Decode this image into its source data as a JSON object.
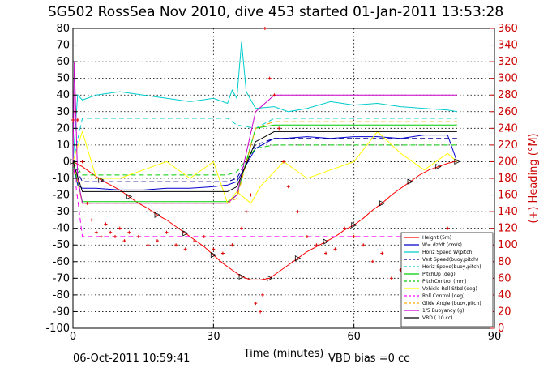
{
  "chart_data": {
    "type": "line",
    "title": "SG502 RossSea Nov 2010, dive 453 started 01-Jan-2011 13:53:28",
    "xlabel": "Time (minutes)",
    "ylabel_left": "",
    "ylabel_right": "(+) Heading (°M)",
    "xlim": [
      0,
      90
    ],
    "ylim_left": [
      -100,
      80
    ],
    "ylim_right": [
      0,
      360
    ],
    "x_ticks": [
      "0",
      "30",
      "60",
      "90"
    ],
    "y_ticks_left": [
      "80",
      "70",
      "60",
      "50",
      "40",
      "30",
      "20",
      "10",
      "0",
      "-10",
      "-20",
      "-30",
      "-40",
      "-50",
      "-60",
      "-70",
      "-80",
      "-90",
      "-100"
    ],
    "y_ticks_right": [
      "360",
      "340",
      "320",
      "300",
      "280",
      "260",
      "240",
      "220",
      "200",
      "180",
      "160",
      "140",
      "120",
      "100",
      "80",
      "60",
      "40",
      "20",
      "0"
    ],
    "grid": true,
    "legend_position": "lower-right",
    "footer_left": "06-Oct-2011 10:59:41",
    "footer_right": "VBD bias =0 cc",
    "series": [
      {
        "name": "Height (5m)",
        "color": "#ff0000",
        "style": "solid",
        "x": [
          0,
          2,
          4,
          6,
          8,
          10,
          12,
          14,
          16,
          18,
          20,
          22,
          24,
          26,
          28,
          30,
          32,
          34,
          36,
          38,
          40,
          42,
          44,
          46,
          48,
          50,
          52,
          54,
          56,
          58,
          60,
          62,
          64,
          66,
          68,
          70,
          72,
          74,
          76,
          78,
          80,
          81.5,
          82
        ],
        "values": [
          0,
          -3,
          -7,
          -11,
          -14,
          -17,
          -21,
          -25,
          -28,
          -32,
          -35,
          -39,
          -43,
          -47,
          -51,
          -56,
          -61,
          -65,
          -69,
          -71,
          -71,
          -70,
          -66,
          -62,
          -58,
          -54,
          -51,
          -48,
          -45,
          -41,
          -38,
          -34,
          -29,
          -25,
          -20,
          -16,
          -12,
          -8,
          -5,
          -3,
          -1,
          0,
          0
        ]
      },
      {
        "name": "W= dz/dt (cm/s)",
        "color": "#0000cc",
        "style": "solid",
        "x": [
          0,
          1,
          2,
          5,
          10,
          15,
          20,
          25,
          30,
          33,
          35,
          39,
          43,
          45,
          50,
          55,
          60,
          65,
          70,
          75,
          80,
          82
        ],
        "values": [
          0,
          -14,
          -16,
          -16,
          -17,
          -17,
          -16,
          -16,
          -15,
          -14,
          -12,
          8,
          14,
          14,
          15,
          14,
          15,
          15,
          14,
          16,
          16,
          0
        ]
      },
      {
        "name": "Horiz Speed W(pitch)",
        "color": "#00cccc",
        "style": "solid",
        "x": [
          0,
          1,
          2,
          5,
          10,
          15,
          20,
          25,
          30,
          33,
          34,
          35,
          36,
          37,
          39,
          43,
          46,
          50,
          55,
          60,
          65,
          70,
          75,
          80,
          82
        ],
        "values": [
          0,
          40,
          37,
          40,
          42,
          40,
          38,
          36,
          38,
          35,
          43,
          38,
          72,
          42,
          32,
          33,
          30,
          32,
          36,
          34,
          35,
          33,
          32,
          31,
          30
        ]
      },
      {
        "name": "Vert Speed(buoy,pitch)",
        "color": "#000099",
        "style": "dashed",
        "x": [
          0,
          2,
          33,
          35,
          39,
          43,
          82
        ],
        "values": [
          0,
          -12,
          -12,
          -10,
          10,
          14,
          14
        ]
      },
      {
        "name": "Horiz Speed(buoy,pitch)",
        "color": "#00cccc",
        "style": "dashed",
        "x": [
          0,
          2,
          33,
          35,
          39,
          43,
          82
        ],
        "values": [
          0,
          26,
          26,
          22,
          20,
          26,
          26
        ]
      },
      {
        "name": "PitchUp (deg)",
        "color": "#00cc00",
        "style": "solid",
        "x": [
          0,
          2,
          33,
          35,
          39,
          43,
          82
        ],
        "values": [
          0,
          -24,
          -24,
          -20,
          20,
          22,
          22
        ]
      },
      {
        "name": "PitchControl (mm)",
        "color": "#00cc00",
        "style": "dashed",
        "x": [
          0,
          2,
          33,
          35,
          39,
          43,
          82
        ],
        "values": [
          0,
          -8,
          -8,
          -6,
          8,
          10,
          10
        ]
      },
      {
        "name": "Vehicle Roll Stbd (deg)",
        "color": "#ffff00",
        "style": "solid",
        "x": [
          0,
          2,
          5,
          8,
          10,
          15,
          20,
          25,
          30,
          33,
          35,
          38,
          40,
          45,
          50,
          55,
          60,
          65,
          70,
          75,
          80,
          82
        ],
        "values": [
          0,
          18,
          -10,
          -10,
          -10,
          -5,
          0,
          -10,
          0,
          -25,
          -18,
          -25,
          -15,
          0,
          -10,
          -5,
          0,
          18,
          5,
          -5,
          5,
          0
        ]
      },
      {
        "name": "Roll Control (deg)",
        "color": "#ff00ff",
        "style": "dashed",
        "x": [
          0,
          2,
          33,
          35,
          82
        ],
        "values": [
          0,
          -45,
          -45,
          -45,
          -45
        ]
      },
      {
        "name": "Glide Angle (buoy,pitch)",
        "color": "#ffaa00",
        "style": "dashed",
        "x": [
          0,
          2,
          33,
          35,
          39,
          43,
          82
        ],
        "values": [
          0,
          -25,
          -25,
          -22,
          20,
          24,
          24
        ]
      },
      {
        "name": "1/5 Buoyancy (g)",
        "color": "#cc00cc",
        "style": "solid",
        "x": [
          0,
          0.3,
          1,
          2,
          33,
          35,
          39,
          43,
          82
        ],
        "values": [
          0,
          60,
          -10,
          -25,
          -25,
          -20,
          30,
          40,
          40
        ]
      },
      {
        "name": "VBD ( 10 cc)",
        "color": "#000000",
        "style": "solid",
        "x": [
          0,
          2,
          33,
          35,
          39,
          43,
          82
        ],
        "values": [
          0,
          -18,
          -18,
          -15,
          12,
          18,
          18
        ]
      }
    ],
    "heading_series": {
      "name": "(+) Heading (°M)",
      "color": "#dd0000",
      "x": [
        0,
        0.5,
        1,
        2,
        3,
        4,
        5,
        6,
        7,
        8,
        9,
        10,
        11,
        12,
        14,
        16,
        18,
        20,
        22,
        24,
        26,
        28,
        30,
        32,
        34,
        36,
        37,
        38,
        39,
        40,
        40.5,
        41,
        42,
        43,
        44,
        45,
        46,
        48,
        50,
        52,
        54,
        56,
        58,
        60,
        62,
        64,
        66,
        68,
        70,
        72,
        74,
        76,
        78,
        80,
        81
      ],
      "values": [
        250,
        260,
        250,
        200,
        150,
        130,
        115,
        110,
        125,
        115,
        110,
        120,
        105,
        115,
        110,
        100,
        105,
        115,
        100,
        95,
        105,
        110,
        95,
        90,
        100,
        120,
        140,
        160,
        30,
        20,
        40,
        360,
        300,
        280,
        240,
        200,
        170,
        140,
        110,
        100,
        90,
        95,
        120,
        110,
        100,
        80,
        90,
        60,
        70,
        90,
        95,
        100,
        110,
        120,
        110
      ]
    }
  }
}
